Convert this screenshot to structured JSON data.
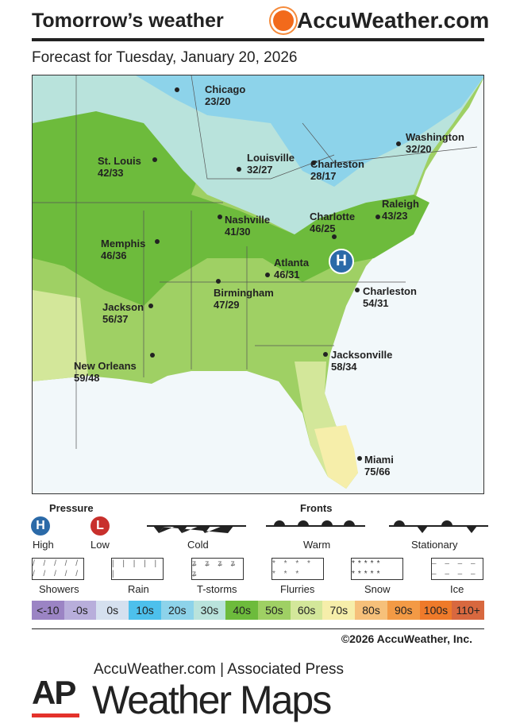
{
  "header": {
    "title": "Tomorrow’s weather",
    "brand": "AccuWeather.com",
    "subtitle": "Forecast for Tuesday, January 20, 2026"
  },
  "map": {
    "pressure_centers": [
      {
        "type": "H"
      }
    ],
    "cities": [
      {
        "name": "Chicago",
        "temps": "23/20"
      },
      {
        "name": "St. Louis",
        "temps": "42/33"
      },
      {
        "name": "Louisville",
        "temps": "32/27"
      },
      {
        "name": "Charleston",
        "temps": "28/17"
      },
      {
        "name": "Washington",
        "temps": "32/20"
      },
      {
        "name": "Raleigh",
        "temps": "43/23"
      },
      {
        "name": "Nashville",
        "temps": "41/30"
      },
      {
        "name": "Charlotte",
        "temps": "46/25"
      },
      {
        "name": "Memphis",
        "temps": "46/36"
      },
      {
        "name": "Atlanta",
        "temps": "46/31"
      },
      {
        "name": "Birmingham",
        "temps": "47/29"
      },
      {
        "name": "Charleston",
        "temps": "54/31"
      },
      {
        "name": "Jackson",
        "temps": "56/37"
      },
      {
        "name": "Jacksonville",
        "temps": "58/34"
      },
      {
        "name": "New Orleans",
        "temps": "59/48"
      },
      {
        "name": "Miami",
        "temps": "75/66"
      }
    ]
  },
  "legend": {
    "pressure_title": "Pressure",
    "fronts_title": "Fronts",
    "high": "High",
    "high_symbol": "H",
    "low": "Low",
    "low_symbol": "L",
    "cold": "Cold",
    "warm": "Warm",
    "stationary": "Stationary",
    "precip": [
      "Showers",
      "Rain",
      "T-storms",
      "Flurries",
      "Snow",
      "Ice"
    ],
    "scale": [
      {
        "label": "<-10",
        "color": "#9b84c4"
      },
      {
        "label": "-0s",
        "color": "#b8aedb"
      },
      {
        "label": "0s",
        "color": "#d5e0ef"
      },
      {
        "label": "10s",
        "color": "#4dc0ec"
      },
      {
        "label": "20s",
        "color": "#8dd3ea"
      },
      {
        "label": "30s",
        "color": "#b9e3dc"
      },
      {
        "label": "40s",
        "color": "#6dbb3c"
      },
      {
        "label": "50s",
        "color": "#9fd064"
      },
      {
        "label": "60s",
        "color": "#d3e79a"
      },
      {
        "label": "70s",
        "color": "#f6eeaa"
      },
      {
        "label": "80s",
        "color": "#f6c07a"
      },
      {
        "label": "90s",
        "color": "#f39a45"
      },
      {
        "label": "100s",
        "color": "#ef7a2a"
      },
      {
        "label": "110+",
        "color": "#d8683f"
      }
    ]
  },
  "footer": {
    "copyright": "©2026 AccuWeather, Inc.",
    "ap": "AP",
    "line1": "AccuWeather.com | Associated Press",
    "line2": "Weather Maps"
  }
}
